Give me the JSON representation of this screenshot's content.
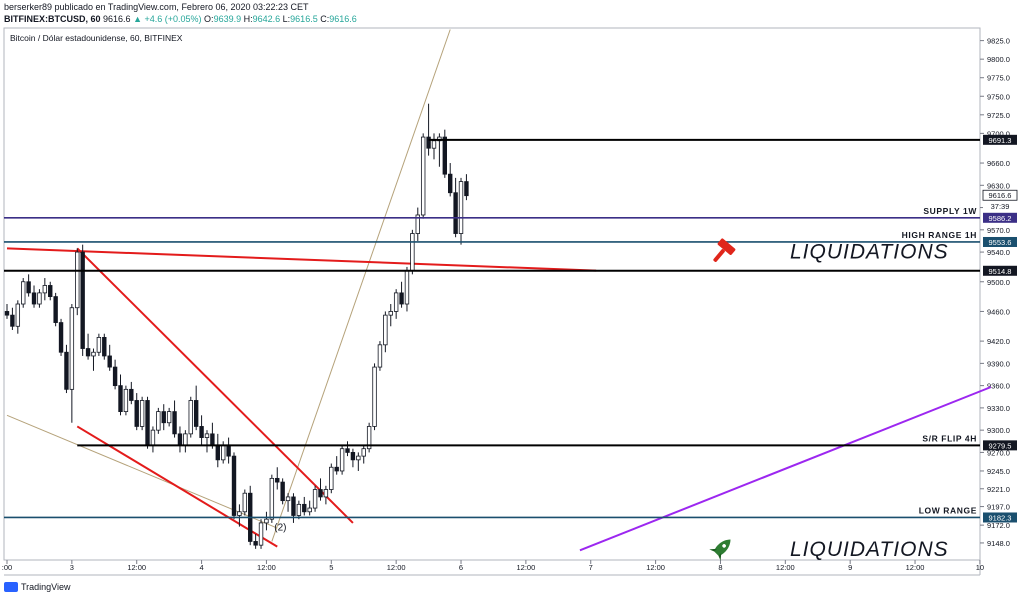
{
  "header": {
    "line1": "berserker89 publicado en TradingView.com, Febrero 06, 2020 03:22:23 CET",
    "symbol": "BITFINEX:BTCUSD, 60",
    "last": "9616.6",
    "change": "▲ +4.6 (+0.05%)",
    "o_label": "O:",
    "o": "9639.9",
    "h_label": "H:",
    "h": "9642.6",
    "l_label": "L:",
    "l": "9616.5",
    "c_label": "C:",
    "c": "9616.6"
  },
  "footer": {
    "brand": "TradingView"
  },
  "colors": {
    "up": "#26a69a",
    "candle": "#131722",
    "red_line": "#e31b1b",
    "purple_line": "#9c27f0",
    "tan_line": "#b5a27a",
    "supply_line": "#3b2f86",
    "blue_line": "#1a4f6e"
  },
  "chart_data": {
    "type": "candlestick",
    "title": "Bitcoin / Dólar estadounidense, 60, BITFINEX",
    "y_ticks": [
      9825.0,
      9800.0,
      9775.0,
      9750.0,
      9725.0,
      9700.0,
      9660.0,
      9630.0,
      9600.0,
      9570.0,
      9540.0,
      9500.0,
      9460.0,
      9420.0,
      9390.0,
      9360.0,
      9330.0,
      9300.0,
      9270.0,
      9245.0,
      9221.0,
      9197.0,
      9172.0,
      9148.0
    ],
    "ylim": [
      9125,
      9842
    ],
    "x_ticks": [
      {
        "label": ":00",
        "i": 0
      },
      {
        "label": "3",
        "i": 12
      },
      {
        "label": "12:00",
        "i": 24
      },
      {
        "label": "4",
        "i": 36
      },
      {
        "label": "12:00",
        "i": 48
      },
      {
        "label": "5",
        "i": 60
      },
      {
        "label": "12:00",
        "i": 72
      },
      {
        "label": "6",
        "i": 84
      },
      {
        "label": "12:00",
        "i": 96
      },
      {
        "label": "7",
        "i": 108
      },
      {
        "label": "12:00",
        "i": 120
      },
      {
        "label": "8",
        "i": 132
      },
      {
        "label": "12:00",
        "i": 144
      },
      {
        "label": "9",
        "i": 156
      },
      {
        "label": "12:00",
        "i": 168
      },
      {
        "label": "10",
        "i": 180
      }
    ],
    "candles": [
      [
        9460,
        9470,
        9450,
        9455
      ],
      [
        9455,
        9465,
        9435,
        9440
      ],
      [
        9440,
        9475,
        9430,
        9470
      ],
      [
        9470,
        9505,
        9465,
        9500
      ],
      [
        9500,
        9510,
        9480,
        9485
      ],
      [
        9485,
        9495,
        9465,
        9470
      ],
      [
        9470,
        9490,
        9465,
        9485
      ],
      [
        9485,
        9505,
        9475,
        9495
      ],
      [
        9495,
        9500,
        9475,
        9480
      ],
      [
        9480,
        9485,
        9440,
        9445
      ],
      [
        9445,
        9450,
        9400,
        9405
      ],
      [
        9405,
        9415,
        9350,
        9355
      ],
      [
        9355,
        9470,
        9310,
        9465
      ],
      [
        9465,
        9545,
        9455,
        9540
      ],
      [
        9540,
        9550,
        9400,
        9410
      ],
      [
        9410,
        9430,
        9395,
        9400
      ],
      [
        9400,
        9410,
        9380,
        9405
      ],
      [
        9405,
        9430,
        9400,
        9425
      ],
      [
        9425,
        9430,
        9395,
        9400
      ],
      [
        9400,
        9415,
        9380,
        9385
      ],
      [
        9385,
        9395,
        9355,
        9360
      ],
      [
        9360,
        9375,
        9320,
        9325
      ],
      [
        9325,
        9360,
        9320,
        9355
      ],
      [
        9355,
        9365,
        9335,
        9340
      ],
      [
        9340,
        9350,
        9300,
        9305
      ],
      [
        9305,
        9345,
        9300,
        9340
      ],
      [
        9340,
        9345,
        9275,
        9280
      ],
      [
        9280,
        9305,
        9270,
        9300
      ],
      [
        9300,
        9330,
        9295,
        9325
      ],
      [
        9325,
        9335,
        9300,
        9310
      ],
      [
        9310,
        9330,
        9305,
        9325
      ],
      [
        9325,
        9340,
        9290,
        9295
      ],
      [
        9295,
        9305,
        9270,
        9280
      ],
      [
        9280,
        9300,
        9270,
        9295
      ],
      [
        9295,
        9345,
        9290,
        9340
      ],
      [
        9340,
        9360,
        9300,
        9305
      ],
      [
        9305,
        9320,
        9280,
        9290
      ],
      [
        9290,
        9300,
        9270,
        9295
      ],
      [
        9295,
        9310,
        9275,
        9280
      ],
      [
        9280,
        9295,
        9250,
        9260
      ],
      [
        9260,
        9285,
        9255,
        9280
      ],
      [
        9280,
        9290,
        9255,
        9265
      ],
      [
        9265,
        9270,
        9180,
        9185
      ],
      [
        9185,
        9200,
        9170,
        9190
      ],
      [
        9190,
        9220,
        9185,
        9215
      ],
      [
        9215,
        9225,
        9145,
        9150
      ],
      [
        9150,
        9160,
        9140,
        9145
      ],
      [
        9145,
        9180,
        9140,
        9175
      ],
      [
        9175,
        9190,
        9165,
        9180
      ],
      [
        9180,
        9240,
        9175,
        9235
      ],
      [
        9235,
        9250,
        9220,
        9230
      ],
      [
        9230,
        9235,
        9200,
        9205
      ],
      [
        9205,
        9215,
        9190,
        9210
      ],
      [
        9210,
        9215,
        9175,
        9185
      ],
      [
        9185,
        9205,
        9180,
        9200
      ],
      [
        9200,
        9210,
        9185,
        9190
      ],
      [
        9190,
        9205,
        9185,
        9195
      ],
      [
        9195,
        9225,
        9190,
        9220
      ],
      [
        9220,
        9235,
        9205,
        9210
      ],
      [
        9210,
        9225,
        9200,
        9220
      ],
      [
        9220,
        9255,
        9215,
        9250
      ],
      [
        9250,
        9265,
        9240,
        9245
      ],
      [
        9245,
        9280,
        9240,
        9275
      ],
      [
        9275,
        9285,
        9265,
        9270
      ],
      [
        9270,
        9275,
        9250,
        9260
      ],
      [
        9260,
        9270,
        9245,
        9265
      ],
      [
        9265,
        9280,
        9255,
        9275
      ],
      [
        9275,
        9310,
        9270,
        9305
      ],
      [
        9305,
        9390,
        9300,
        9385
      ],
      [
        9385,
        9420,
        9380,
        9415
      ],
      [
        9415,
        9460,
        9405,
        9455
      ],
      [
        9455,
        9470,
        9440,
        9460
      ],
      [
        9460,
        9490,
        9450,
        9485
      ],
      [
        9485,
        9500,
        9465,
        9470
      ],
      [
        9470,
        9520,
        9460,
        9515
      ],
      [
        9515,
        9570,
        9510,
        9565
      ],
      [
        9565,
        9600,
        9555,
        9590
      ],
      [
        9590,
        9700,
        9585,
        9695
      ],
      [
        9695,
        9740,
        9670,
        9680
      ],
      [
        9680,
        9700,
        9665,
        9690
      ],
      [
        9690,
        9700,
        9655,
        9695
      ],
      [
        9695,
        9705,
        9640,
        9645
      ],
      [
        9645,
        9660,
        9615,
        9620
      ],
      [
        9620,
        9640,
        9560,
        9565
      ],
      [
        9565,
        9640,
        9550,
        9635
      ],
      [
        9635,
        9645,
        9610,
        9616
      ]
    ],
    "horizontal_levels": [
      {
        "label": "SUPPLY 1W",
        "price": "9586.2",
        "value": 9586.2,
        "style": "supply"
      },
      {
        "label": "HIGH RANGE 1H",
        "price": "9553.6",
        "value": 9553.6,
        "style": "blue"
      },
      {
        "label": "",
        "price": "9514.8",
        "value": 9514.8,
        "style": "black"
      },
      {
        "label": "S/R FLIP 4H",
        "price": "9279.5",
        "value": 9279.5,
        "style": "black"
      },
      {
        "label": "LOW RANGE",
        "price": "9182.3",
        "value": 9182.3,
        "style": "blue"
      },
      {
        "label": "",
        "price": "9691.3",
        "value": 9691.3,
        "style": "black"
      }
    ],
    "last_price": "9616.6",
    "countdown": "37:39",
    "annotations": [
      {
        "text": "LIQUIDATIONS",
        "icon": "hammer-icon"
      },
      {
        "text": "LIQUIDATIONS",
        "icon": "rocket-icon"
      },
      {
        "text": "(2)"
      }
    ]
  }
}
